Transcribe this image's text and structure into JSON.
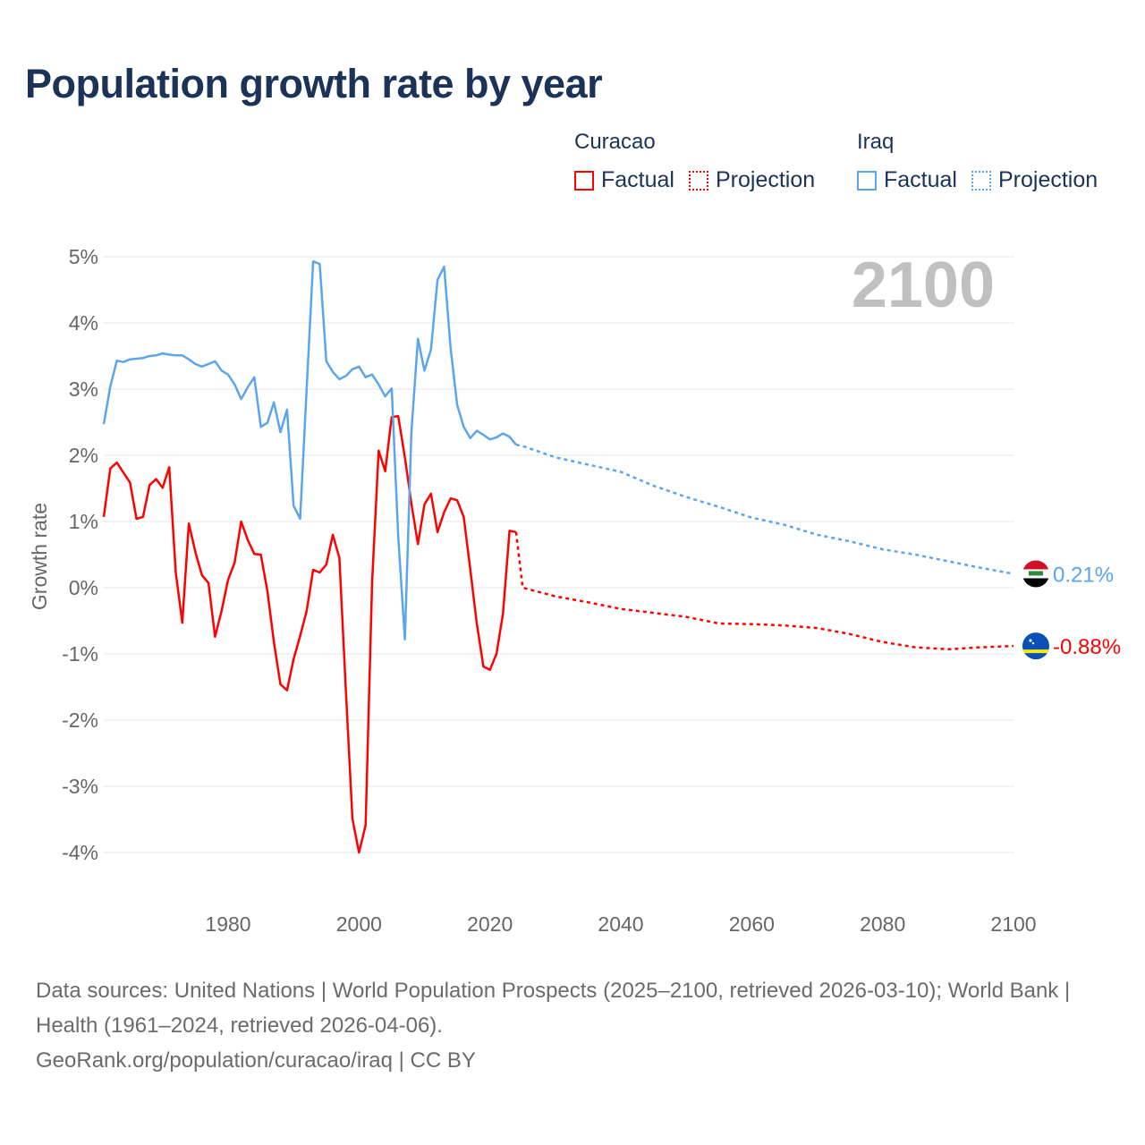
{
  "title": "Population growth rate by year",
  "legend": [
    {
      "name": "Curacao",
      "color": "#ff0000",
      "factual_label": "Factual",
      "projection_label": "Projection"
    },
    {
      "name": "Iraq",
      "color": "#5aa5ee",
      "factual_label": "Factual",
      "projection_label": "Projection"
    }
  ],
  "footer": {
    "sources": "Data sources: United Nations | World Population Prospects (2025–2100, retrieved 2026-03-10); World Bank | Health (1961–2024, retrieved 2026-04-06).",
    "credit": "GeoRank.org/population/curacao/iraq | CC BY"
  },
  "chart_data": {
    "type": "line",
    "title": "Population growth rate by year",
    "xlabel": "",
    "ylabel": "Growth rate",
    "xlim": [
      1961,
      2100
    ],
    "ylim": [
      -4.5,
      5
    ],
    "x_ticks": [
      1980,
      2000,
      2020,
      2040,
      2060,
      2080,
      2100
    ],
    "y_ticks": [
      5,
      4,
      3,
      2,
      1,
      0,
      -1,
      -2,
      -3,
      -4
    ],
    "y_tick_labels": [
      "5%",
      "4%",
      "3%",
      "2%",
      "1%",
      "0%",
      "-1%",
      "-2%",
      "-3%",
      "-4%"
    ],
    "year_label": "2100",
    "grid": true,
    "legend_position": "top-right",
    "series": [
      {
        "name": "Curacao",
        "color": "#ff0000",
        "end_label": "-0.88%",
        "factual": {
          "x": [
            1961,
            1962,
            1963,
            1964,
            1965,
            1966,
            1967,
            1968,
            1969,
            1970,
            1971,
            1972,
            1973,
            1974,
            1975,
            1976,
            1977,
            1978,
            1979,
            1980,
            1981,
            1982,
            1983,
            1984,
            1985,
            1986,
            1987,
            1988,
            1989,
            1990,
            1991,
            1992,
            1993,
            1994,
            1995,
            1996,
            1997,
            1998,
            1999,
            2000,
            2001,
            2002,
            2003,
            2004,
            2005,
            2006,
            2007,
            2008,
            2009,
            2010,
            2011,
            2012,
            2013,
            2014,
            2015,
            2016,
            2017,
            2018,
            2019,
            2020,
            2021,
            2022,
            2023,
            2024
          ],
          "y": [
            1.07,
            1.8,
            1.89,
            1.74,
            1.59,
            1.04,
            1.07,
            1.55,
            1.64,
            1.51,
            1.82,
            0.23,
            -0.53,
            0.97,
            0.54,
            0.19,
            0.07,
            -0.74,
            -0.35,
            0.12,
            0.38,
            1.0,
            0.72,
            0.51,
            0.5,
            -0.05,
            -0.82,
            -1.46,
            -1.55,
            -1.08,
            -0.73,
            -0.35,
            0.27,
            0.23,
            0.35,
            0.8,
            0.45,
            -1.57,
            -3.49,
            -4.0,
            -3.59,
            0.09,
            2.07,
            1.76,
            2.58,
            2.59,
            1.97,
            1.27,
            0.66,
            1.26,
            1.42,
            0.84,
            1.14,
            1.35,
            1.32,
            1.07,
            0.28,
            -0.54,
            -1.19,
            -1.24,
            -1.0,
            -0.39,
            0.86,
            0.84
          ]
        },
        "projection": {
          "x": [
            2024,
            2025,
            2030,
            2035,
            2040,
            2045,
            2050,
            2055,
            2060,
            2065,
            2070,
            2075,
            2080,
            2085,
            2090,
            2095,
            2100
          ],
          "y": [
            0.84,
            0.0,
            -0.13,
            -0.22,
            -0.32,
            -0.38,
            -0.44,
            -0.54,
            -0.55,
            -0.57,
            -0.61,
            -0.7,
            -0.82,
            -0.9,
            -0.93,
            -0.9,
            -0.88
          ]
        }
      },
      {
        "name": "Iraq",
        "color": "#5aa5ee",
        "end_label": "0.21%",
        "factual": {
          "x": [
            1961,
            1962,
            1963,
            1964,
            1965,
            1966,
            1967,
            1968,
            1969,
            1970,
            1971,
            1972,
            1973,
            1974,
            1975,
            1976,
            1977,
            1978,
            1979,
            1980,
            1981,
            1982,
            1983,
            1984,
            1985,
            1986,
            1987,
            1988,
            1989,
            1990,
            1991,
            1992,
            1993,
            1994,
            1995,
            1996,
            1997,
            1998,
            1999,
            2000,
            2001,
            2002,
            2003,
            2004,
            2005,
            2006,
            2007,
            2008,
            2009,
            2010,
            2011,
            2012,
            2013,
            2014,
            2015,
            2016,
            2017,
            2018,
            2019,
            2020,
            2021,
            2022,
            2023,
            2024
          ],
          "y": [
            2.47,
            3.04,
            3.43,
            3.41,
            3.45,
            3.46,
            3.47,
            3.5,
            3.51,
            3.54,
            3.52,
            3.51,
            3.51,
            3.45,
            3.38,
            3.34,
            3.38,
            3.42,
            3.28,
            3.22,
            3.07,
            2.85,
            3.03,
            3.18,
            2.43,
            2.49,
            2.8,
            2.35,
            2.69,
            1.24,
            1.04,
            3.0,
            4.93,
            4.89,
            3.42,
            3.26,
            3.15,
            3.2,
            3.3,
            3.34,
            3.18,
            3.22,
            3.07,
            2.89,
            3.01,
            0.77,
            -0.78,
            2.35,
            3.76,
            3.28,
            3.6,
            4.65,
            4.85,
            3.61,
            2.76,
            2.43,
            2.26,
            2.37,
            2.31,
            2.24,
            2.27,
            2.33,
            2.28,
            2.16
          ]
        },
        "projection": {
          "x": [
            2024,
            2025,
            2030,
            2035,
            2040,
            2045,
            2050,
            2055,
            2060,
            2065,
            2070,
            2075,
            2080,
            2085,
            2090,
            2095,
            2100
          ],
          "y": [
            2.16,
            2.14,
            1.97,
            1.86,
            1.75,
            1.54,
            1.37,
            1.22,
            1.06,
            0.95,
            0.8,
            0.7,
            0.58,
            0.5,
            0.4,
            0.3,
            0.21
          ]
        }
      }
    ]
  }
}
